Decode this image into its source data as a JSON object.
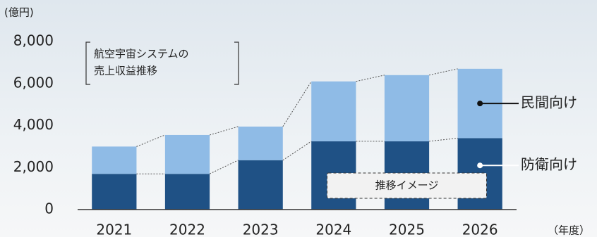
{
  "chart_data": {
    "type": "stacked_bar",
    "y_label": "(億円)",
    "x_label": "（年度）",
    "annotation_lines": [
      "航空宇宙システムの",
      "売上収益推移"
    ],
    "projection_label": "推移イメージ",
    "categories": [
      "2021",
      "2022",
      "2023",
      "2024",
      "2025",
      "2026"
    ],
    "series": [
      {
        "name": "防衛向け",
        "color": "#1f5185",
        "values": [
          1700,
          1700,
          2350,
          3250,
          3250,
          3400
        ]
      },
      {
        "name": "民間向け",
        "color": "#8fbbe6",
        "values": [
          1300,
          1850,
          1600,
          2850,
          3150,
          3300
        ]
      }
    ],
    "ylim": [
      0,
      8000
    ],
    "yticks": [
      0,
      {
        "value": 2000,
        "label": "2,000"
      },
      {
        "value": 4000,
        "label": "4,000"
      },
      {
        "value": 6000,
        "label": "6,000"
      },
      {
        "value": 8000,
        "label": "8,000"
      }
    ]
  }
}
